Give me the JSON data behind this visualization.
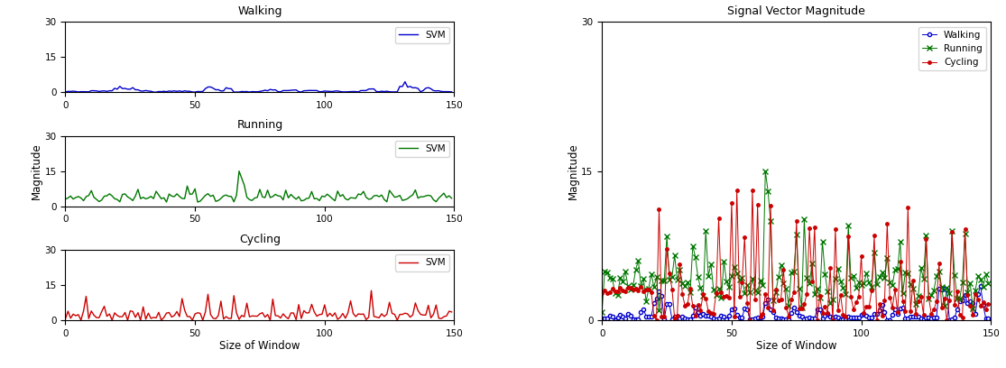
{
  "walking_color": "#0000CC",
  "running_color": "#007700",
  "cycling_color": "#CC0000",
  "xlim": [
    0,
    150
  ],
  "ylim_left": [
    0,
    30
  ],
  "ylim_right": [
    0,
    30
  ],
  "yticks_left": [
    0,
    15,
    30
  ],
  "yticks_right": [
    0,
    15,
    30
  ],
  "xticks": [
    0,
    50,
    100,
    150
  ],
  "xlabel": "Size of Window",
  "ylabel": "Magnitude",
  "title_walking": "Walking",
  "title_running": "Running",
  "title_cycling": "Cycling",
  "title_combined": "Signal Vector Magnitude",
  "legend_walking": "Walking",
  "legend_running": "Running",
  "legend_cycling": "Cycling",
  "legend_svm": "SVM"
}
